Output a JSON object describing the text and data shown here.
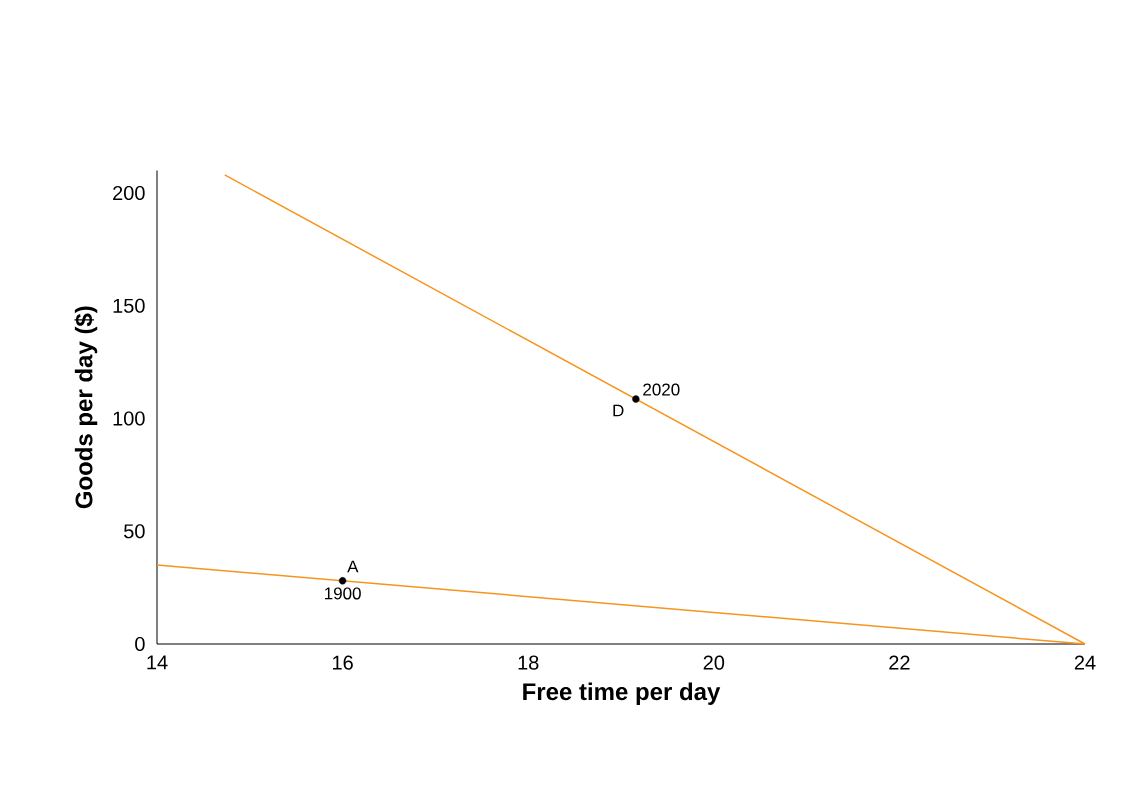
{
  "chart_data": {
    "type": "line",
    "xlabel": "Free time per day",
    "ylabel": "Goods per day ($)",
    "xlim": [
      14,
      24
    ],
    "ylim": [
      0,
      210
    ],
    "xticks": [
      14,
      16,
      18,
      20,
      22,
      24
    ],
    "yticks": [
      0,
      50,
      100,
      150,
      200
    ],
    "series": [
      {
        "color": "#f7941d",
        "x": [
          14,
          24
        ],
        "values": [
          35,
          0
        ]
      },
      {
        "color": "#f7941d",
        "x": [
          14.73,
          24
        ],
        "values": [
          208,
          0
        ]
      },
      {
        "type": "scatter",
        "color": "#000000",
        "x": [
          16,
          19.16
        ],
        "values": [
          28,
          108.6
        ]
      }
    ],
    "annotations": [
      "A",
      "1900",
      "D",
      "2020"
    ]
  }
}
